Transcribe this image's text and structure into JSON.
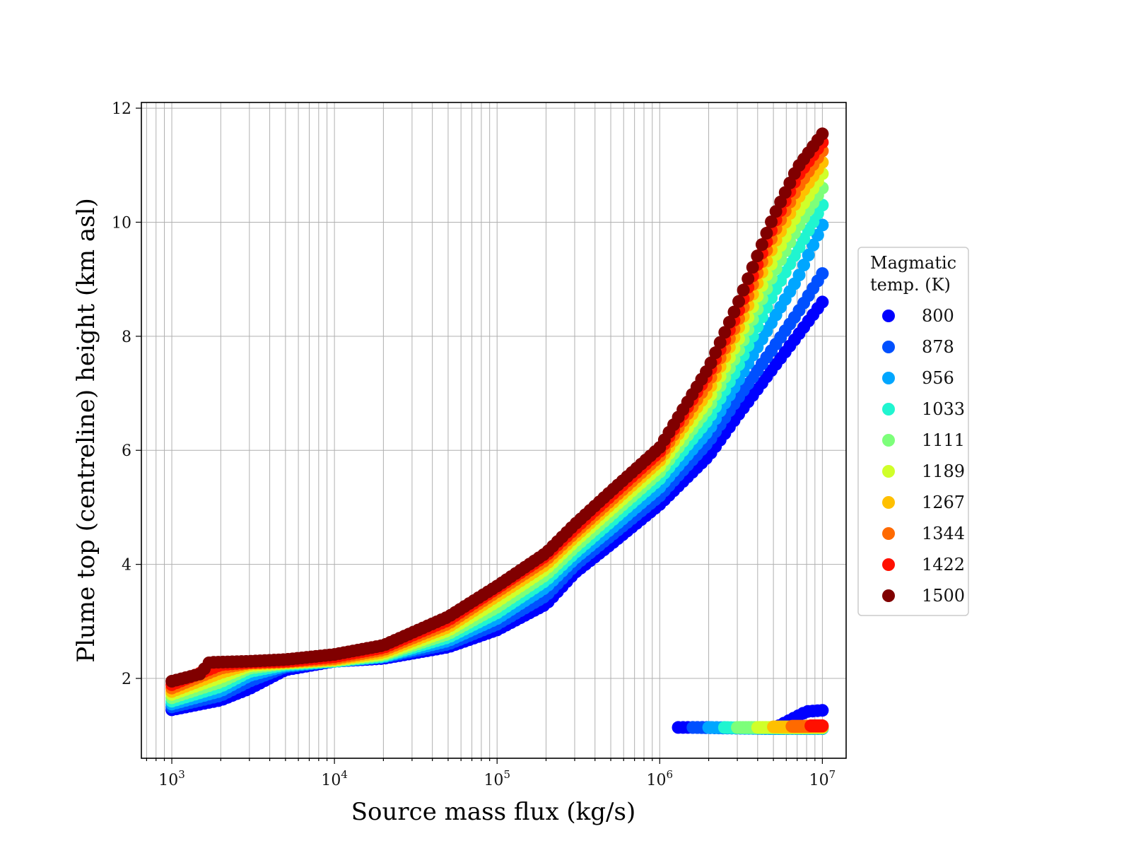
{
  "chart_data": {
    "type": "scatter",
    "x_scale": "log",
    "xlim": [
      650,
      14000000
    ],
    "ylim": [
      0.6,
      12.1
    ],
    "xlabel": "Source mass flux (kg/s)",
    "ylabel": "Plume top (centreline) height (km asl)",
    "x_ticks": [
      {
        "value": 1000,
        "base": "10",
        "exp": "3"
      },
      {
        "value": 10000,
        "base": "10",
        "exp": "4"
      },
      {
        "value": 100000,
        "base": "10",
        "exp": "5"
      },
      {
        "value": 1000000,
        "base": "10",
        "exp": "6"
      },
      {
        "value": 10000000,
        "base": "10",
        "exp": "7"
      }
    ],
    "y_ticks": [
      {
        "value": 2,
        "label": "2"
      },
      {
        "value": 4,
        "label": "4"
      },
      {
        "value": 6,
        "label": "6"
      },
      {
        "value": 8,
        "label": "8"
      },
      {
        "value": 10,
        "label": "10"
      },
      {
        "value": 12,
        "label": "12"
      }
    ],
    "grid": true,
    "legend_placement": "right, outside plot",
    "legend_title": "Magmatic\ntemp. (K)",
    "series": [
      {
        "name": "800",
        "color": "#0000ff",
        "curve": [
          [
            1000,
            1.45
          ],
          [
            2000,
            1.62
          ],
          [
            3000,
            1.82
          ],
          [
            5000,
            2.15
          ],
          [
            10000,
            2.3
          ],
          [
            20000,
            2.35
          ],
          [
            50000,
            2.55
          ],
          [
            100000,
            2.85
          ],
          [
            200000,
            3.3
          ],
          [
            300000,
            3.85
          ],
          [
            500000,
            4.35
          ],
          [
            1000000,
            5.05
          ],
          [
            2000000,
            5.9
          ],
          [
            3000000,
            6.6
          ],
          [
            5000000,
            7.45
          ],
          [
            7000000,
            8.0
          ],
          [
            10000000,
            8.6
          ]
        ],
        "lower": [
          [
            1300000,
            1.14
          ],
          [
            2000000,
            1.14
          ],
          [
            5000000,
            1.12
          ],
          [
            8000000,
            1.42
          ],
          [
            10000000,
            1.44
          ]
        ]
      },
      {
        "name": "878",
        "color": "#0050ff",
        "curve": [
          [
            1000,
            1.5
          ],
          [
            2000,
            1.7
          ],
          [
            3000,
            1.95
          ],
          [
            5000,
            2.2
          ],
          [
            10000,
            2.3
          ],
          [
            20000,
            2.37
          ],
          [
            50000,
            2.6
          ],
          [
            100000,
            2.95
          ],
          [
            200000,
            3.45
          ],
          [
            300000,
            3.98
          ],
          [
            500000,
            4.5
          ],
          [
            1000000,
            5.2
          ],
          [
            2000000,
            6.15
          ],
          [
            3000000,
            6.9
          ],
          [
            5000000,
            7.8
          ],
          [
            7000000,
            8.4
          ],
          [
            10000000,
            9.1
          ]
        ],
        "lower": [
          [
            1600000,
            1.14
          ],
          [
            2500000,
            1.13
          ],
          [
            5000000,
            1.12
          ],
          [
            10000000,
            1.12
          ]
        ]
      },
      {
        "name": "956",
        "color": "#00a6ff",
        "curve": [
          [
            1000,
            1.55
          ],
          [
            2000,
            1.78
          ],
          [
            3000,
            2.05
          ],
          [
            5000,
            2.22
          ],
          [
            10000,
            2.3
          ],
          [
            20000,
            2.38
          ],
          [
            50000,
            2.66
          ],
          [
            100000,
            3.05
          ],
          [
            200000,
            3.6
          ],
          [
            300000,
            4.1
          ],
          [
            500000,
            4.62
          ],
          [
            1000000,
            5.35
          ],
          [
            2000000,
            6.35
          ],
          [
            3000000,
            7.2
          ],
          [
            5000000,
            8.3
          ],
          [
            7000000,
            9.0
          ],
          [
            10000000,
            9.95
          ]
        ],
        "lower": [
          [
            2000000,
            1.14
          ],
          [
            3000000,
            1.13
          ],
          [
            5000000,
            1.12
          ],
          [
            10000000,
            1.12
          ]
        ]
      },
      {
        "name": "1033",
        "color": "#20f5d0",
        "curve": [
          [
            1000,
            1.6
          ],
          [
            2000,
            1.86
          ],
          [
            3000,
            2.12
          ],
          [
            5000,
            2.24
          ],
          [
            10000,
            2.3
          ],
          [
            20000,
            2.39
          ],
          [
            50000,
            2.72
          ],
          [
            100000,
            3.15
          ],
          [
            200000,
            3.72
          ],
          [
            300000,
            4.2
          ],
          [
            500000,
            4.75
          ],
          [
            1000000,
            5.5
          ],
          [
            2000000,
            6.55
          ],
          [
            3000000,
            7.45
          ],
          [
            5000000,
            8.75
          ],
          [
            7000000,
            9.5
          ],
          [
            10000000,
            10.3
          ]
        ],
        "lower": [
          [
            2500000,
            1.14
          ],
          [
            3500000,
            1.13
          ],
          [
            5000000,
            1.13
          ],
          [
            10000000,
            1.13
          ]
        ]
      },
      {
        "name": "1111",
        "color": "#7dff7a",
        "curve": [
          [
            1000,
            1.66
          ],
          [
            2000,
            1.94
          ],
          [
            3000,
            2.18
          ],
          [
            5000,
            2.26
          ],
          [
            10000,
            2.31
          ],
          [
            20000,
            2.41
          ],
          [
            50000,
            2.78
          ],
          [
            100000,
            3.25
          ],
          [
            200000,
            3.82
          ],
          [
            300000,
            4.3
          ],
          [
            500000,
            4.86
          ],
          [
            1000000,
            5.62
          ],
          [
            2000000,
            6.75
          ],
          [
            3000000,
            7.7
          ],
          [
            5000000,
            9.1
          ],
          [
            7000000,
            9.9
          ],
          [
            10000000,
            10.6
          ]
        ],
        "lower": [
          [
            3000000,
            1.14
          ],
          [
            4500000,
            1.14
          ],
          [
            6000000,
            1.13
          ],
          [
            10000000,
            1.13
          ]
        ]
      },
      {
        "name": "1189",
        "color": "#d0ff2a",
        "curve": [
          [
            1000,
            1.72
          ],
          [
            2000,
            2.02
          ],
          [
            3000,
            2.22
          ],
          [
            5000,
            2.27
          ],
          [
            10000,
            2.32
          ],
          [
            20000,
            2.43
          ],
          [
            50000,
            2.84
          ],
          [
            100000,
            3.35
          ],
          [
            200000,
            3.92
          ],
          [
            300000,
            4.4
          ],
          [
            500000,
            4.96
          ],
          [
            1000000,
            5.72
          ],
          [
            2000000,
            6.9
          ],
          [
            3000000,
            7.9
          ],
          [
            5000000,
            9.35
          ],
          [
            7000000,
            10.15
          ],
          [
            10000000,
            10.85
          ]
        ],
        "lower": [
          [
            4000000,
            1.14
          ],
          [
            5000000,
            1.14
          ],
          [
            6500000,
            1.14
          ],
          [
            10000000,
            1.14
          ]
        ]
      },
      {
        "name": "1267",
        "color": "#ffc000",
        "curve": [
          [
            1000,
            1.77
          ],
          [
            2000,
            2.1
          ],
          [
            3000,
            2.25
          ],
          [
            5000,
            2.28
          ],
          [
            10000,
            2.33
          ],
          [
            20000,
            2.46
          ],
          [
            50000,
            2.9
          ],
          [
            100000,
            3.45
          ],
          [
            200000,
            4.0
          ],
          [
            300000,
            4.48
          ],
          [
            500000,
            5.05
          ],
          [
            1000000,
            5.82
          ],
          [
            2000000,
            7.05
          ],
          [
            3000000,
            8.1
          ],
          [
            5000000,
            9.6
          ],
          [
            7000000,
            10.4
          ],
          [
            10000000,
            11.05
          ]
        ],
        "lower": [
          [
            5000000,
            1.15
          ],
          [
            6500000,
            1.15
          ],
          [
            8000000,
            1.15
          ],
          [
            10000000,
            1.15
          ]
        ]
      },
      {
        "name": "1344",
        "color": "#ff6a00",
        "curve": [
          [
            1000,
            1.83
          ],
          [
            2000,
            2.18
          ],
          [
            3000,
            2.27
          ],
          [
            5000,
            2.29
          ],
          [
            10000,
            2.35
          ],
          [
            20000,
            2.5
          ],
          [
            50000,
            2.96
          ],
          [
            100000,
            3.52
          ],
          [
            200000,
            4.08
          ],
          [
            300000,
            4.55
          ],
          [
            500000,
            5.12
          ],
          [
            1000000,
            5.9
          ],
          [
            2000000,
            7.2
          ],
          [
            3000000,
            8.25
          ],
          [
            5000000,
            9.8
          ],
          [
            7000000,
            10.6
          ],
          [
            10000000,
            11.25
          ]
        ],
        "lower": [
          [
            6500000,
            1.16
          ],
          [
            8000000,
            1.16
          ],
          [
            9000000,
            1.16
          ],
          [
            10000000,
            1.16
          ]
        ]
      },
      {
        "name": "1422",
        "color": "#ff1000",
        "curve": [
          [
            1000,
            1.89
          ],
          [
            2000,
            2.24
          ],
          [
            3000,
            2.28
          ],
          [
            5000,
            2.3
          ],
          [
            10000,
            2.38
          ],
          [
            20000,
            2.54
          ],
          [
            50000,
            3.02
          ],
          [
            100000,
            3.58
          ],
          [
            200000,
            4.15
          ],
          [
            300000,
            4.62
          ],
          [
            500000,
            5.2
          ],
          [
            1000000,
            5.98
          ],
          [
            2000000,
            7.35
          ],
          [
            3000000,
            8.4
          ],
          [
            5000000,
            9.95
          ],
          [
            7000000,
            10.8
          ],
          [
            10000000,
            11.4
          ]
        ],
        "lower": [
          [
            8500000,
            1.17
          ],
          [
            9500000,
            1.17
          ],
          [
            10000000,
            1.17
          ]
        ]
      },
      {
        "name": "1500",
        "color": "#800000",
        "curve": [
          [
            1000,
            1.95
          ],
          [
            1500,
            2.08
          ],
          [
            1700,
            2.28
          ],
          [
            3000,
            2.3
          ],
          [
            5000,
            2.33
          ],
          [
            10000,
            2.42
          ],
          [
            20000,
            2.58
          ],
          [
            50000,
            3.08
          ],
          [
            100000,
            3.62
          ],
          [
            200000,
            4.2
          ],
          [
            300000,
            4.7
          ],
          [
            500000,
            5.28
          ],
          [
            1000000,
            6.05
          ],
          [
            2000000,
            7.45
          ],
          [
            3000000,
            8.55
          ],
          [
            5000000,
            10.1
          ],
          [
            7000000,
            10.95
          ],
          [
            10000000,
            11.55
          ]
        ],
        "lower": []
      }
    ]
  }
}
